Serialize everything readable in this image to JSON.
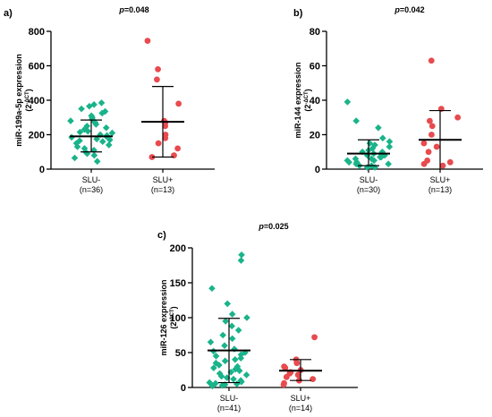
{
  "chart_data": [
    {
      "type": "scatter",
      "panel_label": "a)",
      "p_label": "p=0.048",
      "ylabel": "miR-199a-5p expression",
      "ylabel_unit": "(2^-ΔCT)",
      "ylim": [
        0,
        800
      ],
      "yticks": [
        0,
        200,
        400,
        600,
        800
      ],
      "categories": [
        {
          "label": "SLU-",
          "n": "(n=36)"
        },
        {
          "label": "SLU+",
          "n": "(n=13)"
        }
      ],
      "series": [
        {
          "marker": "diamond",
          "color": "#1ab38a",
          "mean": 190,
          "sd_low": 100,
          "sd_high": 285,
          "values": [
            385,
            375,
            365,
            350,
            335,
            325,
            310,
            300,
            290,
            280,
            270,
            260,
            250,
            240,
            230,
            220,
            215,
            210,
            200,
            195,
            190,
            185,
            175,
            170,
            165,
            160,
            150,
            140,
            130,
            120,
            110,
            100,
            90,
            80,
            65,
            45
          ]
        },
        {
          "marker": "circle",
          "color": "#e84a4e",
          "mean": 275,
          "sd_low": 70,
          "sd_high": 480,
          "values": [
            745,
            580,
            520,
            380,
            280,
            270,
            250,
            200,
            180,
            150,
            120,
            80,
            70
          ]
        }
      ]
    },
    {
      "type": "scatter",
      "panel_label": "b)",
      "p_label": "p=0.042",
      "ylabel": "miR-144 expression",
      "ylabel_unit": "(2^-ΔCT)",
      "ylim": [
        0,
        80
      ],
      "yticks": [
        0,
        20,
        40,
        60,
        80
      ],
      "categories": [
        {
          "label": "SLU-",
          "n": "(n=30)"
        },
        {
          "label": "SLU+",
          "n": "(n=13)"
        }
      ],
      "series": [
        {
          "marker": "diamond",
          "color": "#1ab38a",
          "mean": 9,
          "sd_low": 2,
          "sd_high": 17,
          "values": [
            39,
            28,
            24,
            18,
            16,
            15,
            14,
            13,
            12,
            11,
            10,
            10,
            9,
            9,
            8,
            8,
            7,
            7,
            6,
            6,
            5,
            5,
            4,
            4,
            3,
            3,
            2,
            2,
            1,
            1
          ]
        },
        {
          "marker": "circle",
          "color": "#e84a4e",
          "mean": 17,
          "sd_low": 0,
          "sd_high": 34,
          "values": [
            63,
            35,
            30,
            28,
            25,
            20,
            15,
            13,
            10,
            5,
            4,
            3,
            2
          ]
        }
      ]
    },
    {
      "type": "scatter",
      "panel_label": "c)",
      "p_label": "p=0.025",
      "ylabel": "miR-126 expression",
      "ylabel_unit": "(2^-ΔCT)",
      "ylim": [
        0,
        200
      ],
      "yticks": [
        0,
        50,
        100,
        150,
        200
      ],
      "categories": [
        {
          "label": "SLU-",
          "n": "(n=41)"
        },
        {
          "label": "SLU+",
          "n": "(n=14)"
        }
      ],
      "series": [
        {
          "marker": "diamond",
          "color": "#1ab38a",
          "mean": 53,
          "sd_low": 7,
          "sd_high": 99,
          "values": [
            190,
            182,
            142,
            120,
            105,
            100,
            95,
            88,
            82,
            75,
            70,
            65,
            60,
            55,
            52,
            50,
            47,
            45,
            42,
            40,
            38,
            35,
            32,
            30,
            28,
            26,
            24,
            22,
            20,
            18,
            16,
            14,
            12,
            10,
            8,
            7,
            6,
            5,
            4,
            3,
            2
          ]
        },
        {
          "marker": "circle",
          "color": "#e84a4e",
          "mean": 24,
          "sd_low": 10,
          "sd_high": 40,
          "values": [
            72,
            40,
            35,
            30,
            28,
            25,
            22,
            20,
            18,
            15,
            12,
            10,
            6,
            4
          ]
        }
      ]
    }
  ]
}
